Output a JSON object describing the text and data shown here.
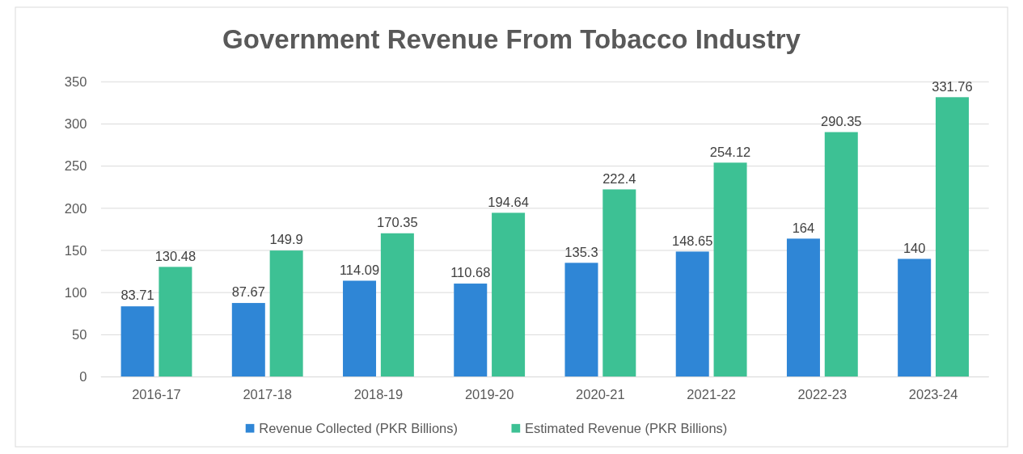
{
  "chart_data": {
    "type": "bar",
    "title": "Government Revenue From Tobacco Industry",
    "categories": [
      "2016-17",
      "2017-18",
      "2018-19",
      "2019-20",
      "2020-21",
      "2021-22",
      "2022-23",
      "2023-24"
    ],
    "series": [
      {
        "name": "Revenue Collected (PKR Billions)",
        "color": "#2f86d6",
        "values": [
          83.71,
          87.67,
          114.09,
          110.68,
          135.3,
          148.65,
          164,
          140
        ]
      },
      {
        "name": "Estimated Revenue (PKR Billions)",
        "color": "#3dc194",
        "values": [
          130.48,
          149.9,
          170.35,
          194.64,
          222.4,
          254.12,
          290.35,
          331.76
        ]
      }
    ],
    "ylim": [
      0,
      350
    ],
    "yticks": [
      0,
      50,
      100,
      150,
      200,
      250,
      300,
      350
    ],
    "grid": "y",
    "legend": "bottom",
    "data_labels": true
  }
}
